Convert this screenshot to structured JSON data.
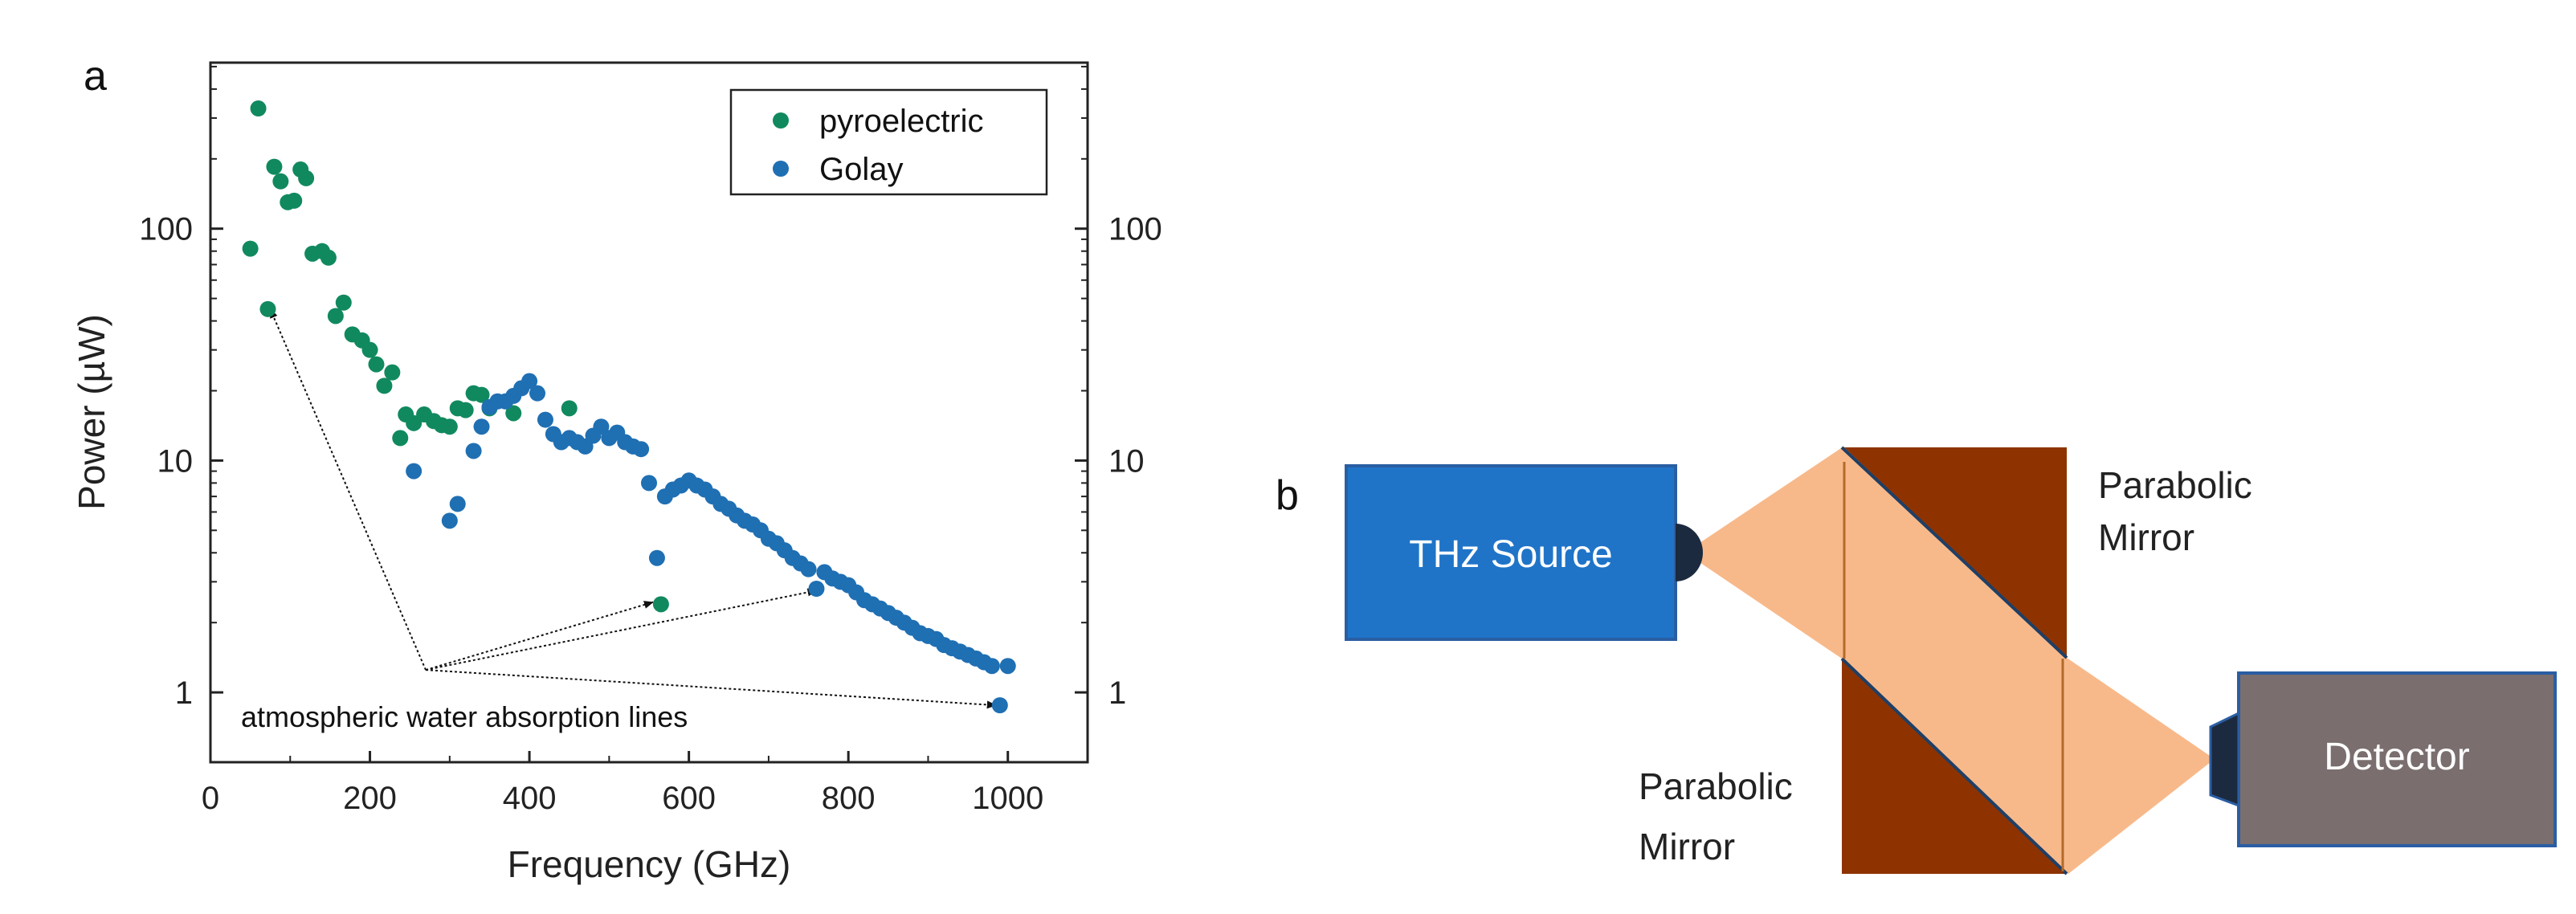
{
  "panel_a_label": "a",
  "panel_b_label": "b",
  "colors": {
    "pyroelectric": "#11895f",
    "golay": "#1f6fb3",
    "thz_box": "#1f74c8",
    "thz_box_border": "#2a5ea3",
    "detector_box": "#7a6e6e",
    "detector_border": "#2a5ea3",
    "mirror": "#8e3300",
    "beam": "#f8b98a",
    "mirror_edge": "#1f3f66",
    "horn": "#1c2a3f"
  },
  "chart_data": {
    "type": "scatter",
    "xlabel": "Frequency (GHz)",
    "ylabel": "Power (µW)",
    "xlim": [
      0,
      1100
    ],
    "ylim": [
      0.5,
      520
    ],
    "yscale": "log",
    "x_ticks": [
      0,
      200,
      400,
      600,
      800,
      1000
    ],
    "x_tick_labels": [
      "0",
      "200",
      "400",
      "600",
      "800",
      "1000"
    ],
    "y_ticks": [
      1,
      10,
      100
    ],
    "y_tick_labels": [
      "1",
      "10",
      "100"
    ],
    "right_y_tick_labels": [
      "1",
      "10",
      "100"
    ],
    "legend": {
      "position": "top-right",
      "entries": [
        "pyroelectric",
        "Golay"
      ]
    },
    "series": [
      {
        "name": "pyroelectric",
        "x": [
          50,
          60,
          72,
          80,
          88,
          97,
          105,
          113,
          120,
          128,
          140,
          148,
          157,
          167,
          178,
          190,
          200,
          208,
          218,
          228,
          238,
          245,
          255,
          268,
          280,
          290,
          300,
          310,
          320,
          330,
          340,
          350,
          380,
          450,
          565
        ],
        "y": [
          82,
          330,
          45,
          185,
          160,
          130,
          132,
          180,
          165,
          78,
          80,
          75,
          42,
          48,
          35,
          33,
          30,
          26,
          21,
          24,
          12.5,
          15.8,
          14.5,
          15.8,
          14.8,
          14.2,
          14,
          16.8,
          16.5,
          19.5,
          19.2,
          16.8,
          16,
          16.8,
          2.4
        ]
      },
      {
        "name": "Golay",
        "x": [
          255,
          300,
          310,
          330,
          340,
          350,
          360,
          370,
          380,
          390,
          400,
          410,
          420,
          430,
          440,
          450,
          460,
          470,
          480,
          490,
          500,
          510,
          520,
          530,
          540,
          550,
          560,
          570,
          580,
          590,
          600,
          610,
          620,
          630,
          640,
          650,
          660,
          670,
          680,
          690,
          700,
          710,
          720,
          730,
          740,
          750,
          760,
          770,
          780,
          790,
          800,
          810,
          820,
          830,
          840,
          850,
          860,
          870,
          880,
          890,
          900,
          910,
          920,
          930,
          940,
          950,
          960,
          970,
          980,
          990,
          1000
        ],
        "y": [
          9,
          5.5,
          6.5,
          11,
          14,
          17,
          18,
          18,
          19,
          20.5,
          22,
          19.5,
          15,
          13,
          12,
          12.5,
          12,
          11.5,
          12.8,
          14,
          12.5,
          13.2,
          12,
          11.5,
          11.2,
          8,
          3.8,
          7,
          7.5,
          7.8,
          8.2,
          7.8,
          7.5,
          7,
          6.5,
          6.2,
          5.8,
          5.5,
          5.3,
          5,
          4.6,
          4.4,
          4.1,
          3.8,
          3.6,
          3.4,
          2.8,
          3.3,
          3.1,
          3.0,
          2.9,
          2.7,
          2.5,
          2.4,
          2.3,
          2.2,
          2.1,
          2.0,
          1.9,
          1.8,
          1.75,
          1.7,
          1.6,
          1.55,
          1.5,
          1.45,
          1.4,
          1.35,
          1.3,
          0.88,
          1.3
        ]
      }
    ],
    "annotation": {
      "text": "atmospheric water absorption lines",
      "origin": [
        270,
        1.25
      ],
      "targets": [
        [
          75,
          45
        ],
        [
          555,
          2.45
        ],
        [
          760,
          2.75
        ],
        [
          985,
          0.88
        ]
      ]
    }
  },
  "diagram": {
    "thz_source_label": "THz Source",
    "detector_label": "Detector",
    "top_mirror_label_line1": "Parabolic",
    "top_mirror_label_line2": "Mirror",
    "bottom_mirror_label_line1": "Parabolic",
    "bottom_mirror_label_line2": "Mirror"
  }
}
